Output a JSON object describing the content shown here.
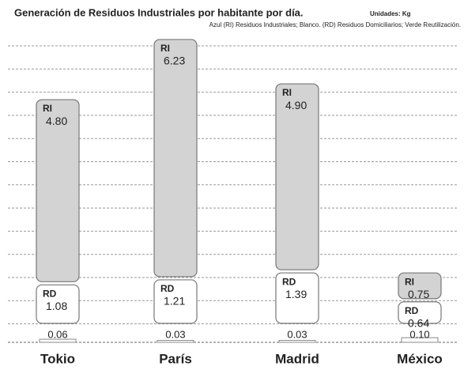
{
  "chart_data": {
    "type": "bar",
    "title": "Generación de Residuos Industriales por habitante por día.",
    "units_note": "Unidades: Kg",
    "subtitle": "Azul (RI) Residuos Industriales; Blanco. (RD) Residuos Domiciliarios; Verde Reutilización.",
    "categories": [
      "Tokio",
      "París",
      "Madrid",
      "México"
    ],
    "series": [
      {
        "color": "#ffffff",
        "values": [
          0.06,
          0.03,
          0.03,
          0.1
        ],
        "value_labels": [
          "0.06",
          "0.03",
          "0.03",
          "0.10"
        ]
      },
      {
        "name": "RD",
        "color": "#ffffff",
        "values": [
          1.08,
          1.21,
          1.39,
          0.64
        ],
        "value_labels": [
          "1.08",
          "1.21",
          "1.39",
          "0.64"
        ]
      },
      {
        "name": "RI",
        "color": "#d3d3d3",
        "values": [
          4.8,
          6.23,
          4.9,
          0.75
        ],
        "value_labels": [
          "4.80",
          "6.23",
          "4.90",
          "0.75"
        ]
      }
    ],
    "ylim": [
      0,
      7.5
    ]
  }
}
